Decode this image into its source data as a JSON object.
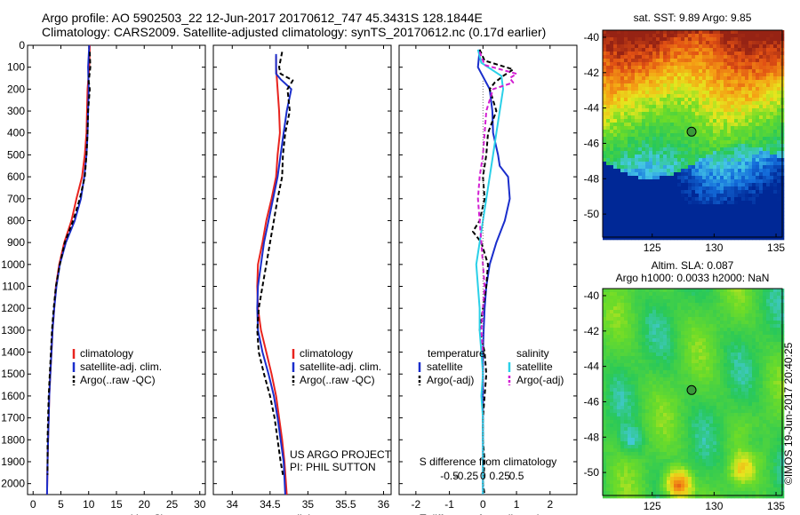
{
  "header": {
    "line1": "Argo profile: AO 5902503_22 12-Jun-2017 20170612_747 45.3431S 128.1844E",
    "line2": "Climatology: CARS2009. Satellite-adjusted climatology: synTS_20170612.nc (0.17d earlier)"
  },
  "colors": {
    "climatology": "#e8231e",
    "satellite": "#1a2ecc",
    "argo": "#000000",
    "satellite_salinity": "#2ad0e8",
    "argo_salinity": "#d21ed2"
  },
  "chart_data": [
    {
      "id": "temperature",
      "type": "line",
      "xlabel": "temperature (deg C)",
      "ylabel": "",
      "xlim": [
        -1,
        31
      ],
      "ylim": [
        2050,
        0
      ],
      "xticks": [
        0,
        5,
        10,
        15,
        20,
        25,
        30
      ],
      "yticks": [
        0,
        100,
        200,
        300,
        400,
        500,
        600,
        700,
        800,
        900,
        1000,
        1100,
        1200,
        1300,
        1400,
        1500,
        1600,
        1700,
        1800,
        1900,
        2000
      ],
      "legend": [
        "climatology",
        "satellite-adj. clim.",
        "Argo(..raw -QC)"
      ],
      "series": [
        {
          "name": "climatology",
          "color": "#e8231e",
          "dash": "",
          "x": [
            10.2,
            10.1,
            9.8,
            9.7,
            9.6,
            9.3,
            8.8,
            7.8,
            6.9,
            5.6,
            4.7,
            4.1,
            3.8,
            3.5,
            3.3,
            3.1,
            2.9,
            2.8,
            2.7,
            2.6,
            2.5
          ],
          "y": [
            0,
            100,
            200,
            300,
            400,
            500,
            600,
            700,
            800,
            900,
            1000,
            1100,
            1200,
            1300,
            1400,
            1500,
            1600,
            1700,
            1800,
            1900,
            2050
          ]
        },
        {
          "name": "satellite-adj. clim.",
          "color": "#1a2ecc",
          "dash": "",
          "x": [
            10.1,
            9.9,
            10.0,
            9.9,
            9.8,
            9.6,
            9.2,
            8.6,
            7.5,
            5.9,
            4.8,
            4.2,
            3.8,
            3.5,
            3.3,
            3.1,
            2.9,
            2.8,
            2.7,
            2.6,
            2.5
          ],
          "y": [
            0,
            100,
            200,
            300,
            400,
            500,
            600,
            700,
            800,
            900,
            1000,
            1100,
            1200,
            1300,
            1400,
            1500,
            1600,
            1700,
            1800,
            1900,
            2050
          ]
        },
        {
          "name": "Argo(..raw -QC)",
          "color": "#000000",
          "dash": "5,3",
          "x": [
            10.2,
            10.3,
            10.0,
            10.2,
            9.9,
            9.8,
            9.6,
            9.3,
            8.4,
            7.2,
            5.7,
            4.8,
            4.1,
            3.7,
            3.4,
            3.2,
            3.0,
            2.8,
            2.7,
            2.6,
            2.6
          ],
          "y": [
            30,
            100,
            165,
            200,
            300,
            400,
            500,
            600,
            700,
            800,
            900,
            1000,
            1100,
            1200,
            1300,
            1400,
            1500,
            1600,
            1700,
            1800,
            1960
          ]
        }
      ]
    },
    {
      "id": "salinity",
      "type": "line",
      "xlabel": "salinity",
      "ylabel": "",
      "xlim": [
        33.75,
        36.1
      ],
      "ylim": [
        2050,
        0
      ],
      "xticks": [
        34,
        34.5,
        35,
        35.5,
        36
      ],
      "legend": [
        "climatology",
        "satellite-adj. clim.",
        "Argo(..raw -QC)"
      ],
      "annotation": [
        "US ARGO PROJECT",
        "PI: PHIL SUTTON"
      ],
      "series": [
        {
          "name": "climatology",
          "color": "#e8231e",
          "dash": "",
          "x": [
            34.58,
            34.58,
            34.6,
            34.62,
            34.63,
            34.6,
            34.58,
            34.52,
            34.45,
            34.4,
            34.34,
            34.33,
            34.34,
            34.38,
            34.45,
            34.52,
            34.58,
            34.62,
            34.66,
            34.69,
            34.72
          ],
          "y": [
            50,
            100,
            200,
            300,
            400,
            500,
            600,
            700,
            800,
            900,
            1000,
            1100,
            1200,
            1300,
            1400,
            1500,
            1600,
            1700,
            1800,
            1900,
            2050
          ]
        },
        {
          "name": "satellite-adj. clim.",
          "color": "#1a2ecc",
          "dash": "",
          "x": [
            34.58,
            34.58,
            34.58,
            34.64,
            34.78,
            34.72,
            34.68,
            34.64,
            34.6,
            34.54,
            34.48,
            34.42,
            34.38,
            34.34,
            34.33,
            34.34,
            34.4,
            34.48,
            34.55,
            34.6,
            34.64,
            34.68,
            34.7
          ],
          "y": [
            40,
            100,
            130,
            155,
            200,
            300,
            400,
            500,
            600,
            700,
            800,
            900,
            1000,
            1100,
            1200,
            1300,
            1400,
            1500,
            1600,
            1700,
            1800,
            1900,
            2050
          ]
        },
        {
          "name": "Argo(..raw -QC)",
          "color": "#000000",
          "dash": "5,3",
          "x": [
            34.66,
            34.62,
            34.64,
            34.8,
            34.73,
            34.76,
            34.7,
            34.67,
            34.66,
            34.6,
            34.55,
            34.5,
            34.45,
            34.4,
            34.35,
            34.33,
            34.35,
            34.42,
            34.5,
            34.56,
            34.6,
            34.64,
            34.67
          ],
          "y": [
            30,
            100,
            130,
            160,
            200,
            300,
            400,
            500,
            600,
            700,
            800,
            900,
            1000,
            1100,
            1200,
            1300,
            1400,
            1500,
            1600,
            1700,
            1800,
            1900,
            1960
          ]
        }
      ]
    },
    {
      "id": "difference",
      "type": "line",
      "xlabel": "T difference from climatology",
      "top_label": "S difference from climatology",
      "ylabel": "",
      "xlim": [
        -2.5,
        2.8
      ],
      "ylim": [
        2050,
        0
      ],
      "xticks": [
        -2,
        -1,
        0,
        1,
        2
      ],
      "s_ticks": [
        "-0.5",
        "-0.25",
        "0",
        "0.25",
        "0.5"
      ],
      "legend": {
        "temperature_title": "temperature",
        "salinity_title": "salinity",
        "temperature_entries": [
          "satellite",
          "Argo(-adj)"
        ],
        "salinity_entries": [
          "satellite",
          "Argo(-adj)"
        ]
      },
      "series": [
        {
          "name": "temperature satellite",
          "color": "#1a2ecc",
          "dash": "",
          "x": [
            -0.1,
            -0.15,
            0.2,
            0.28,
            0.3,
            0.45,
            0.5,
            0.75,
            0.8,
            0.65,
            0.4,
            0.2,
            0.1,
            0.05,
            0.02,
            0.0,
            0.0,
            0.0,
            0.0,
            0.0,
            0.0
          ],
          "y": [
            20,
            100,
            200,
            300,
            400,
            500,
            550,
            600,
            700,
            800,
            900,
            1000,
            1100,
            1200,
            1300,
            1400,
            1500,
            1600,
            1700,
            1800,
            2050
          ]
        },
        {
          "name": "temperature Argo(-adj)",
          "color": "#000000",
          "dash": "5,3",
          "x": [
            -0.1,
            0.05,
            0.9,
            0.6,
            0.35,
            0.2,
            0.4,
            0.15,
            0.1,
            0.0,
            0.05,
            -0.1,
            -0.3,
            -0.05,
            0.15,
            0.1,
            0.0,
            -0.1,
            0.05,
            0.1,
            0.05,
            0.0,
            0.0,
            0.05,
            0.0,
            0.05
          ],
          "y": [
            20,
            70,
            110,
            140,
            170,
            200,
            300,
            400,
            500,
            600,
            700,
            800,
            850,
            900,
            1000,
            1100,
            1200,
            1300,
            1400,
            1500,
            1600,
            1700,
            1800,
            1900,
            2000,
            2050
          ]
        },
        {
          "name": "salinity satellite",
          "color": "#2ad0e8",
          "dash": "",
          "x": [
            -0.15,
            -0.05,
            0.55,
            0.6,
            0.5,
            0.4,
            0.3,
            0.2,
            0.1,
            0.0,
            -0.1,
            -0.2,
            -0.15,
            -0.1,
            -0.1,
            -0.05,
            0.0,
            -0.05,
            0.0,
            0.0,
            0.0,
            0.0
          ],
          "y": [
            20,
            80,
            140,
            200,
            300,
            400,
            500,
            600,
            700,
            800,
            900,
            1000,
            1100,
            1200,
            1300,
            1400,
            1500,
            1600,
            1700,
            1800,
            1900,
            2050
          ]
        },
        {
          "name": "salinity Argo(-adj)",
          "color": "#d21ed2",
          "dash": "5,3",
          "x": [
            -0.1,
            0.05,
            1.0,
            0.8,
            0.9,
            0.3,
            0.1,
            0.05,
            0.0,
            -0.1,
            -0.15,
            -0.1,
            -0.05,
            0.0,
            0.05,
            0.0,
            -0.05,
            0.0
          ],
          "y": [
            30,
            90,
            130,
            150,
            170,
            200,
            300,
            400,
            500,
            600,
            700,
            800,
            900,
            1000,
            1100,
            1200,
            1300,
            1400
          ]
        }
      ]
    }
  ],
  "maps": [
    {
      "id": "sst",
      "title": "sat. SST: 9.89 Argo: 9.85",
      "title2": "",
      "xticks": [
        125,
        130,
        135
      ],
      "yticks": [
        -40,
        -42,
        -44,
        -46,
        -48,
        -50
      ],
      "xlim": [
        121,
        135.5
      ],
      "ylim": [
        -51.3,
        -39.6
      ],
      "marker": {
        "lon": 128.18,
        "lat": -45.34
      }
    },
    {
      "id": "sla",
      "title": "Altim. SLA: 0.087",
      "title2": "Argo h1000: 0.0033 h2000: NaN",
      "xticks": [
        125,
        130,
        135
      ],
      "yticks": [
        -40,
        -42,
        -44,
        -46,
        -48,
        -50
      ],
      "xlim": [
        121,
        135.5
      ],
      "ylim": [
        -51.3,
        -39.6
      ],
      "marker": {
        "lon": 128.18,
        "lat": -45.34
      }
    }
  ],
  "footer": {
    "timestamp": "©IMOS 19-Jun-2017 20:40:25"
  }
}
